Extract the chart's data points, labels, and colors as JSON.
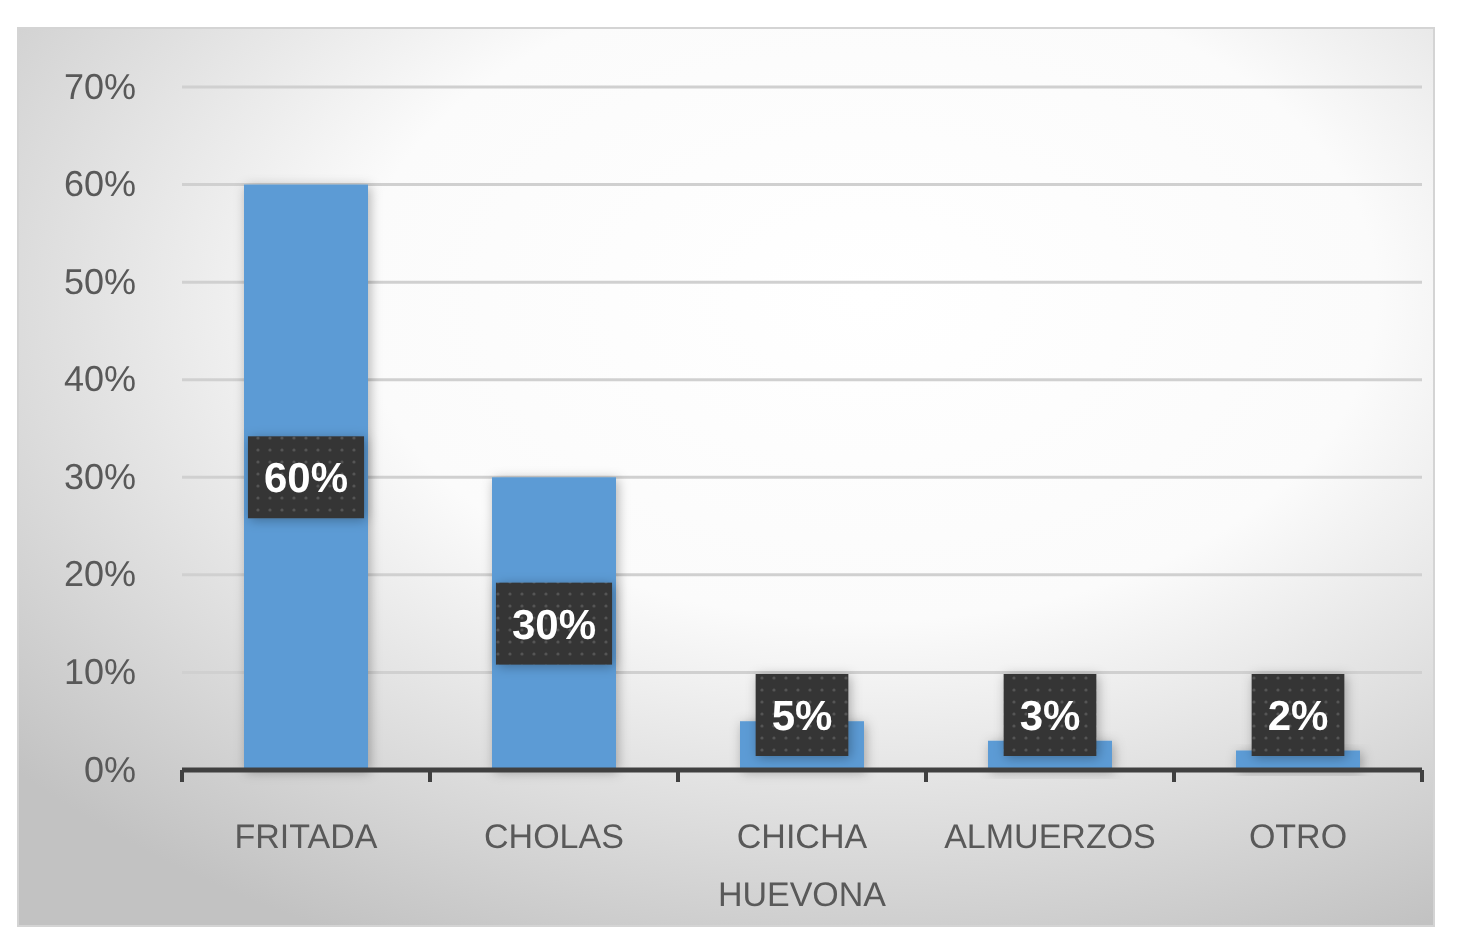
{
  "chart_data": {
    "type": "bar",
    "categories": [
      "FRITADA",
      "CHOLAS",
      "CHICHA HUEVONA",
      "ALMUERZOS",
      "OTRO"
    ],
    "values": [
      60,
      30,
      5,
      3,
      2
    ],
    "color": "#5b9bd5",
    "value_labels": [
      "60%",
      "30%",
      "5%",
      "3%",
      "2%"
    ],
    "ylim": [
      0,
      70
    ],
    "yticks": [
      {
        "value": 0,
        "label": "0%"
      },
      {
        "value": 10,
        "label": "10%"
      },
      {
        "value": 20,
        "label": "20%"
      },
      {
        "value": 30,
        "label": "30%"
      },
      {
        "value": 40,
        "label": "40%"
      },
      {
        "value": 50,
        "label": "50%"
      },
      {
        "value": 60,
        "label": "60%"
      },
      {
        "value": 70,
        "label": "70%"
      }
    ],
    "grid": "y"
  }
}
